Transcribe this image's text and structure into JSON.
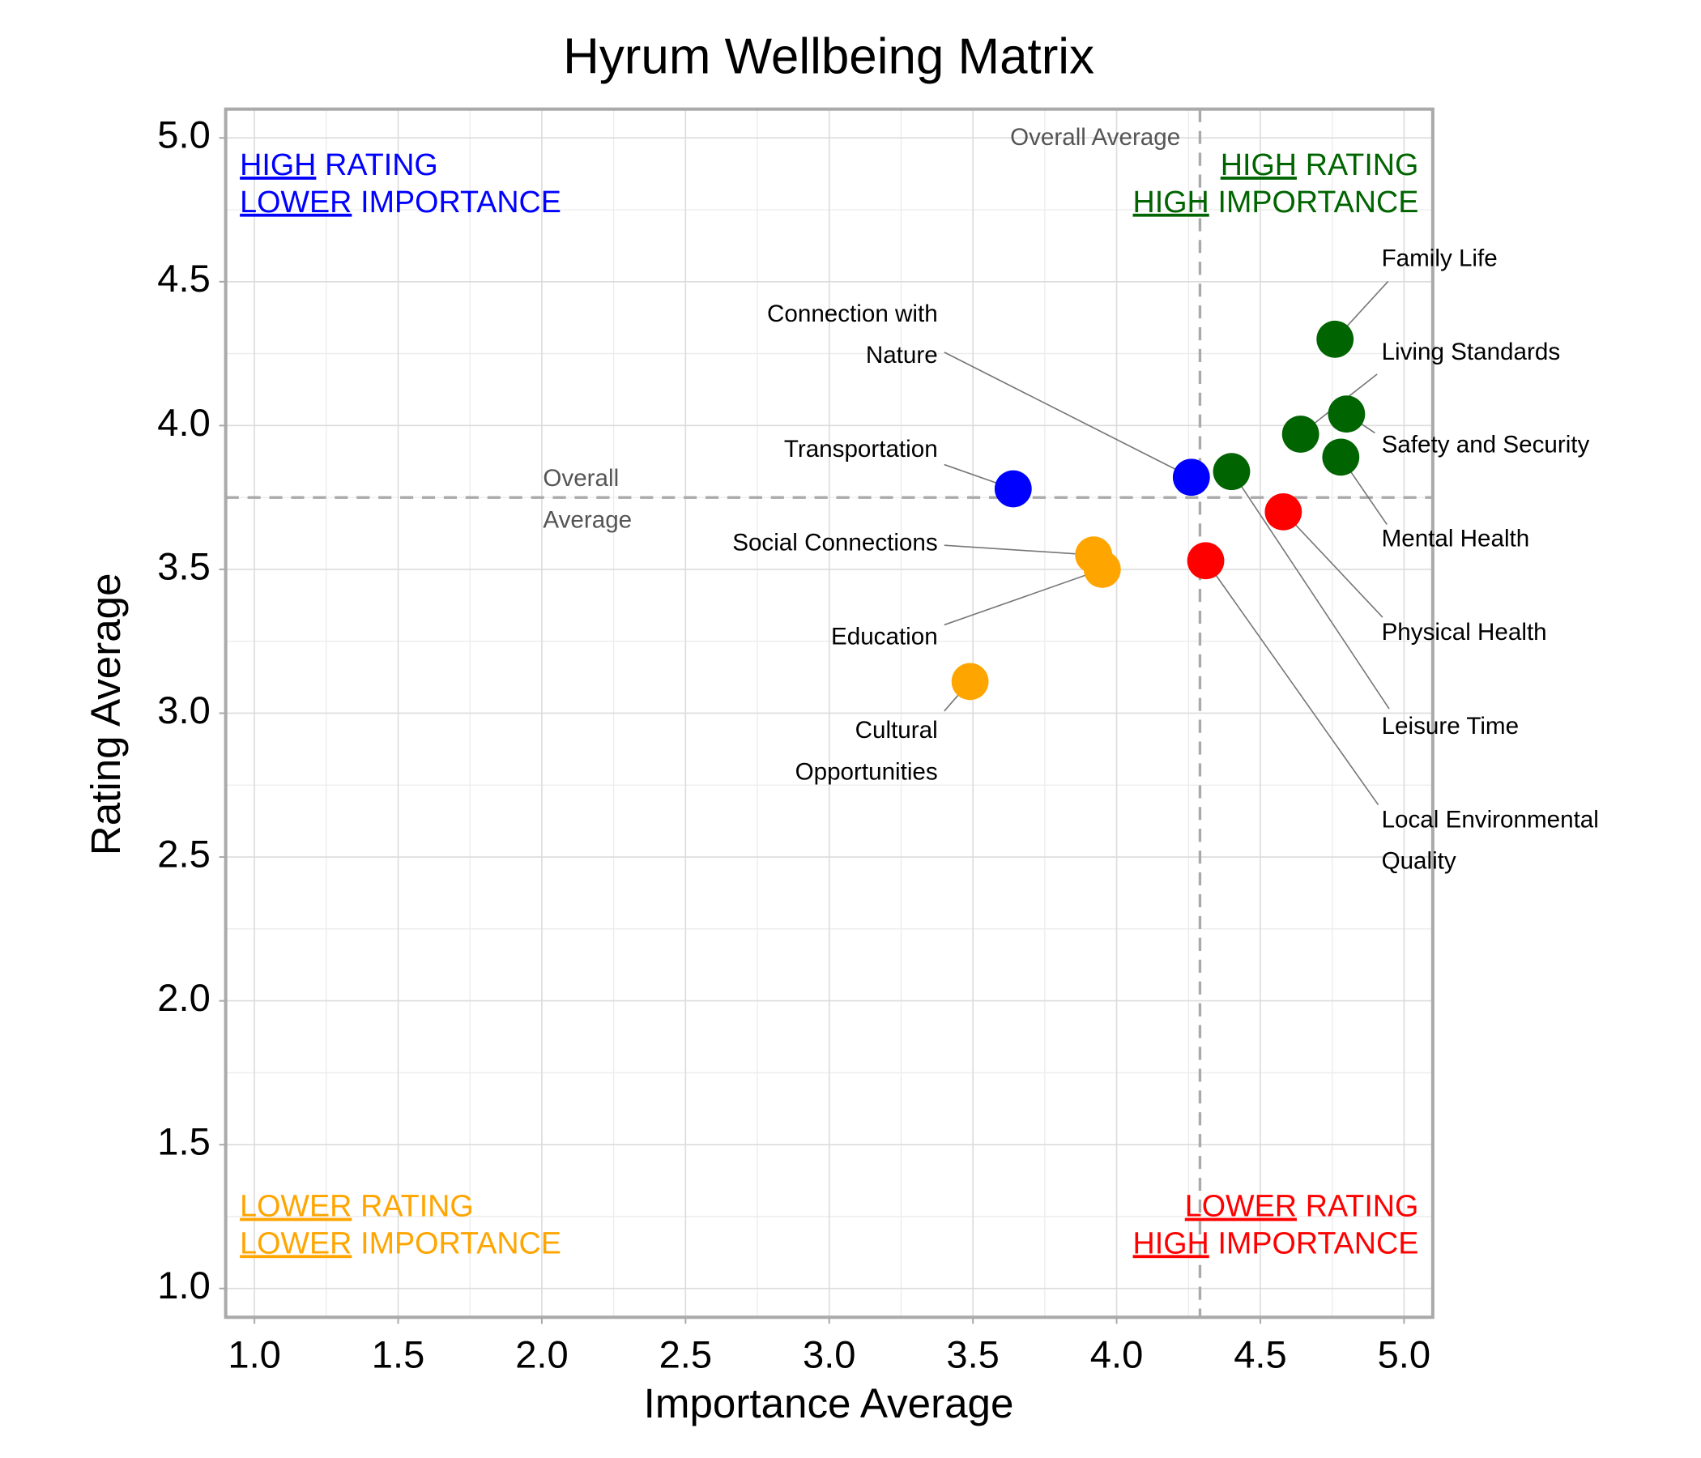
{
  "chart_data": {
    "type": "scatter",
    "title": "Hyrum Wellbeing Matrix",
    "x_label": "Importance Average",
    "y_label": "Rating Average",
    "xlim": [
      0.9,
      5.1
    ],
    "ylim": [
      0.9,
      5.1
    ],
    "xticks": [
      {
        "value": 1,
        "label": "1.0"
      },
      1.5,
      {
        "value": 2,
        "label": "2.0"
      },
      2.5,
      {
        "value": 3,
        "label": "3.0"
      },
      3.5,
      {
        "value": 4,
        "label": "4.0"
      },
      4.5,
      {
        "value": 5,
        "label": "5.0"
      }
    ],
    "yticks": [
      {
        "value": 1,
        "label": "1.0"
      },
      1.5,
      {
        "value": 2,
        "label": "2.0"
      },
      2.5,
      {
        "value": 3,
        "label": "3.0"
      },
      3.5,
      {
        "value": 4,
        "label": "4.0"
      },
      4.5,
      {
        "value": 5,
        "label": "5.0"
      }
    ],
    "grid": true,
    "average": {
      "x": 4.29,
      "y": 3.75,
      "x_label": "Overall Average",
      "y_label": [
        "Overall",
        "Average"
      ]
    },
    "points": [
      {
        "label": [
          "Family Life"
        ],
        "color": "#006400",
        "x": 4.76,
        "y": 4.3
      },
      {
        "label": [
          "Living Standards"
        ],
        "color": "#006400",
        "x": 4.64,
        "y": 3.97
      },
      {
        "label": [
          "Safety and Security"
        ],
        "color": "#006400",
        "x": 4.8,
        "y": 4.04
      },
      {
        "label": [
          "Mental Health"
        ],
        "color": "#006400",
        "x": 4.78,
        "y": 3.89
      },
      {
        "label": [
          "Leisure Time"
        ],
        "color": "#006400",
        "x": 4.4,
        "y": 3.84
      },
      {
        "label": [
          "Physical Health"
        ],
        "color": "#ff0000",
        "x": 4.58,
        "y": 3.7
      },
      {
        "label": [
          "Local Environmental",
          "Quality"
        ],
        "color": "#ff0000",
        "x": 4.31,
        "y": 3.53
      },
      {
        "label": [
          "Connection with",
          "Nature"
        ],
        "color": "#0000ff",
        "x": 4.26,
        "y": 3.82
      },
      {
        "label": [
          "Transportation"
        ],
        "color": "#0000ff",
        "x": 3.64,
        "y": 3.78
      },
      {
        "label": [
          "Social Connections"
        ],
        "color": "#ffa500",
        "x": 3.92,
        "y": 3.55
      },
      {
        "label": [
          "Education"
        ],
        "color": "#ffa500",
        "x": 3.95,
        "y": 3.5
      },
      {
        "label": [
          "Cultural",
          "Opportunities"
        ],
        "color": "#ffa500",
        "x": 3.49,
        "y": 3.11
      }
    ],
    "quadrants": [
      {
        "position": "top-left",
        "color": "#0000ff",
        "lines": [
          {
            "emphasis": "HIGH",
            "text": "RATING"
          },
          {
            "emphasis": "LOWER",
            "text": "IMPORTANCE"
          }
        ]
      },
      {
        "position": "top-right",
        "color": "#006400",
        "lines": [
          {
            "emphasis": "HIGH",
            "text": "RATING"
          },
          {
            "emphasis": "HIGH",
            "text": "IMPORTANCE"
          }
        ]
      },
      {
        "position": "bottom-left",
        "color": "#ffa500",
        "lines": [
          {
            "emphasis": "LOWER",
            "text": "RATING"
          },
          {
            "emphasis": "LOWER",
            "text": "IMPORTANCE"
          }
        ]
      },
      {
        "position": "bottom-right",
        "color": "#ff0000",
        "lines": [
          {
            "emphasis": "LOWER",
            "text": "RATING"
          },
          {
            "emphasis": "HIGH",
            "text": "IMPORTANCE"
          }
        ]
      }
    ]
  }
}
